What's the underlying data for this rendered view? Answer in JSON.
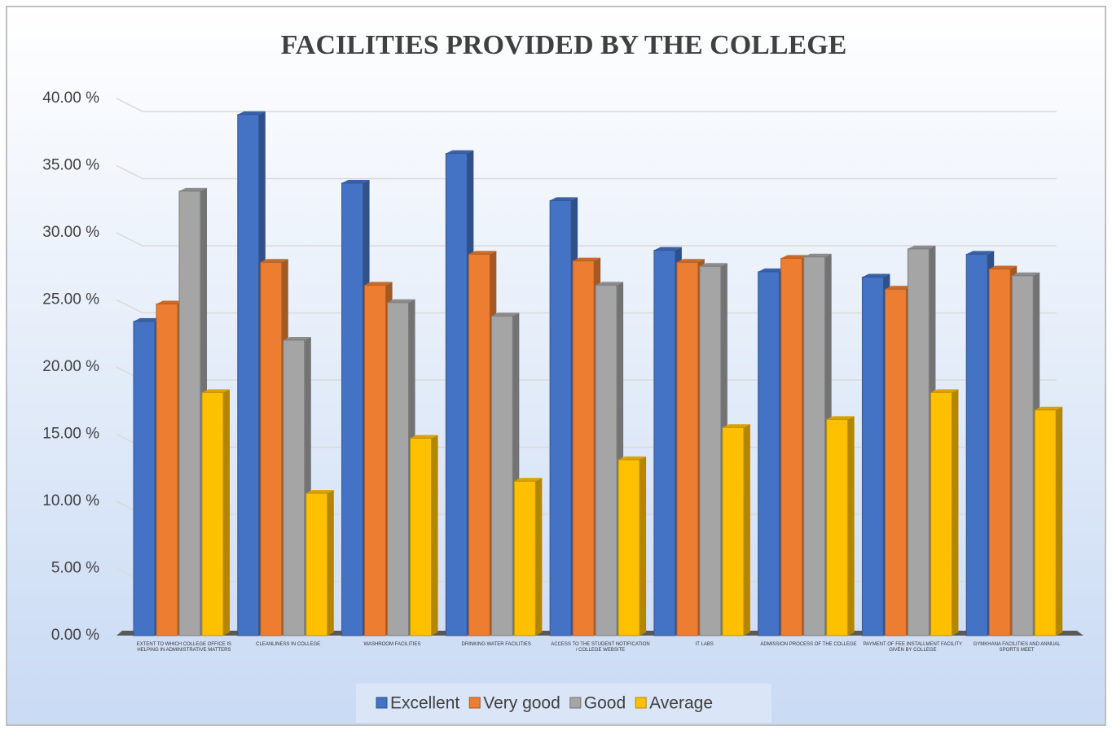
{
  "chart_data": {
    "type": "bar3d",
    "title": "FACILITIES PROVIDED BY THE COLLEGE",
    "categories": [
      "EXTENT TO WHICH COLLEGE OFFICE IS HELPING IN ADMINISTRATIVE MATTERS",
      "CLEANLINESS IN COLLEGE",
      "WASHROOM FACILITIES",
      "DRINKING WATER FACILITIES",
      "ACCESS TO THE STUDENT NOTIFICATION / COLLEGE WEBSITE",
      "IT LABS",
      "ADMISSION PROCESS OF THE COLLEGE",
      "PAYMENT OF FEE INSTALLMENT FACILITY GIVEN BY COLLEGE",
      "GYMKHANA FACILITIES AND ANNUAL SPORTS MEET"
    ],
    "series": [
      {
        "name": "Excellent",
        "color": "#4472c4",
        "values": [
          23.4,
          38.8,
          33.7,
          35.9,
          32.4,
          28.7,
          27.1,
          26.7,
          28.4
        ]
      },
      {
        "name": "Very good",
        "color": "#ed7d31",
        "values": [
          24.7,
          27.8,
          26.1,
          28.4,
          27.9,
          27.8,
          28.1,
          25.8,
          27.3
        ]
      },
      {
        "name": "Good",
        "color": "#a5a5a5",
        "values": [
          33.1,
          22.0,
          24.8,
          23.8,
          26.1,
          27.5,
          28.2,
          28.8,
          26.8
        ]
      },
      {
        "name": "Average",
        "color": "#ffc000",
        "values": [
          18.1,
          10.6,
          14.7,
          11.5,
          13.1,
          15.5,
          16.1,
          18.1,
          16.8
        ]
      }
    ],
    "ylim": [
      0,
      40
    ],
    "yticks": [
      {
        "value": 0,
        "label": "0.00 %"
      },
      {
        "value": 5,
        "label": "5.00 %"
      },
      {
        "value": 10,
        "label": "10.00 %"
      },
      {
        "value": 15,
        "label": "15.00 %"
      },
      {
        "value": 20,
        "label": "20.00 %"
      },
      {
        "value": 25,
        "label": "25.00 %"
      },
      {
        "value": 30,
        "label": "30.00 %"
      },
      {
        "value": 35,
        "label": "35.00 %"
      },
      {
        "value": 40,
        "label": "40.00 %"
      }
    ],
    "grid": true,
    "legend": "bottom"
  }
}
